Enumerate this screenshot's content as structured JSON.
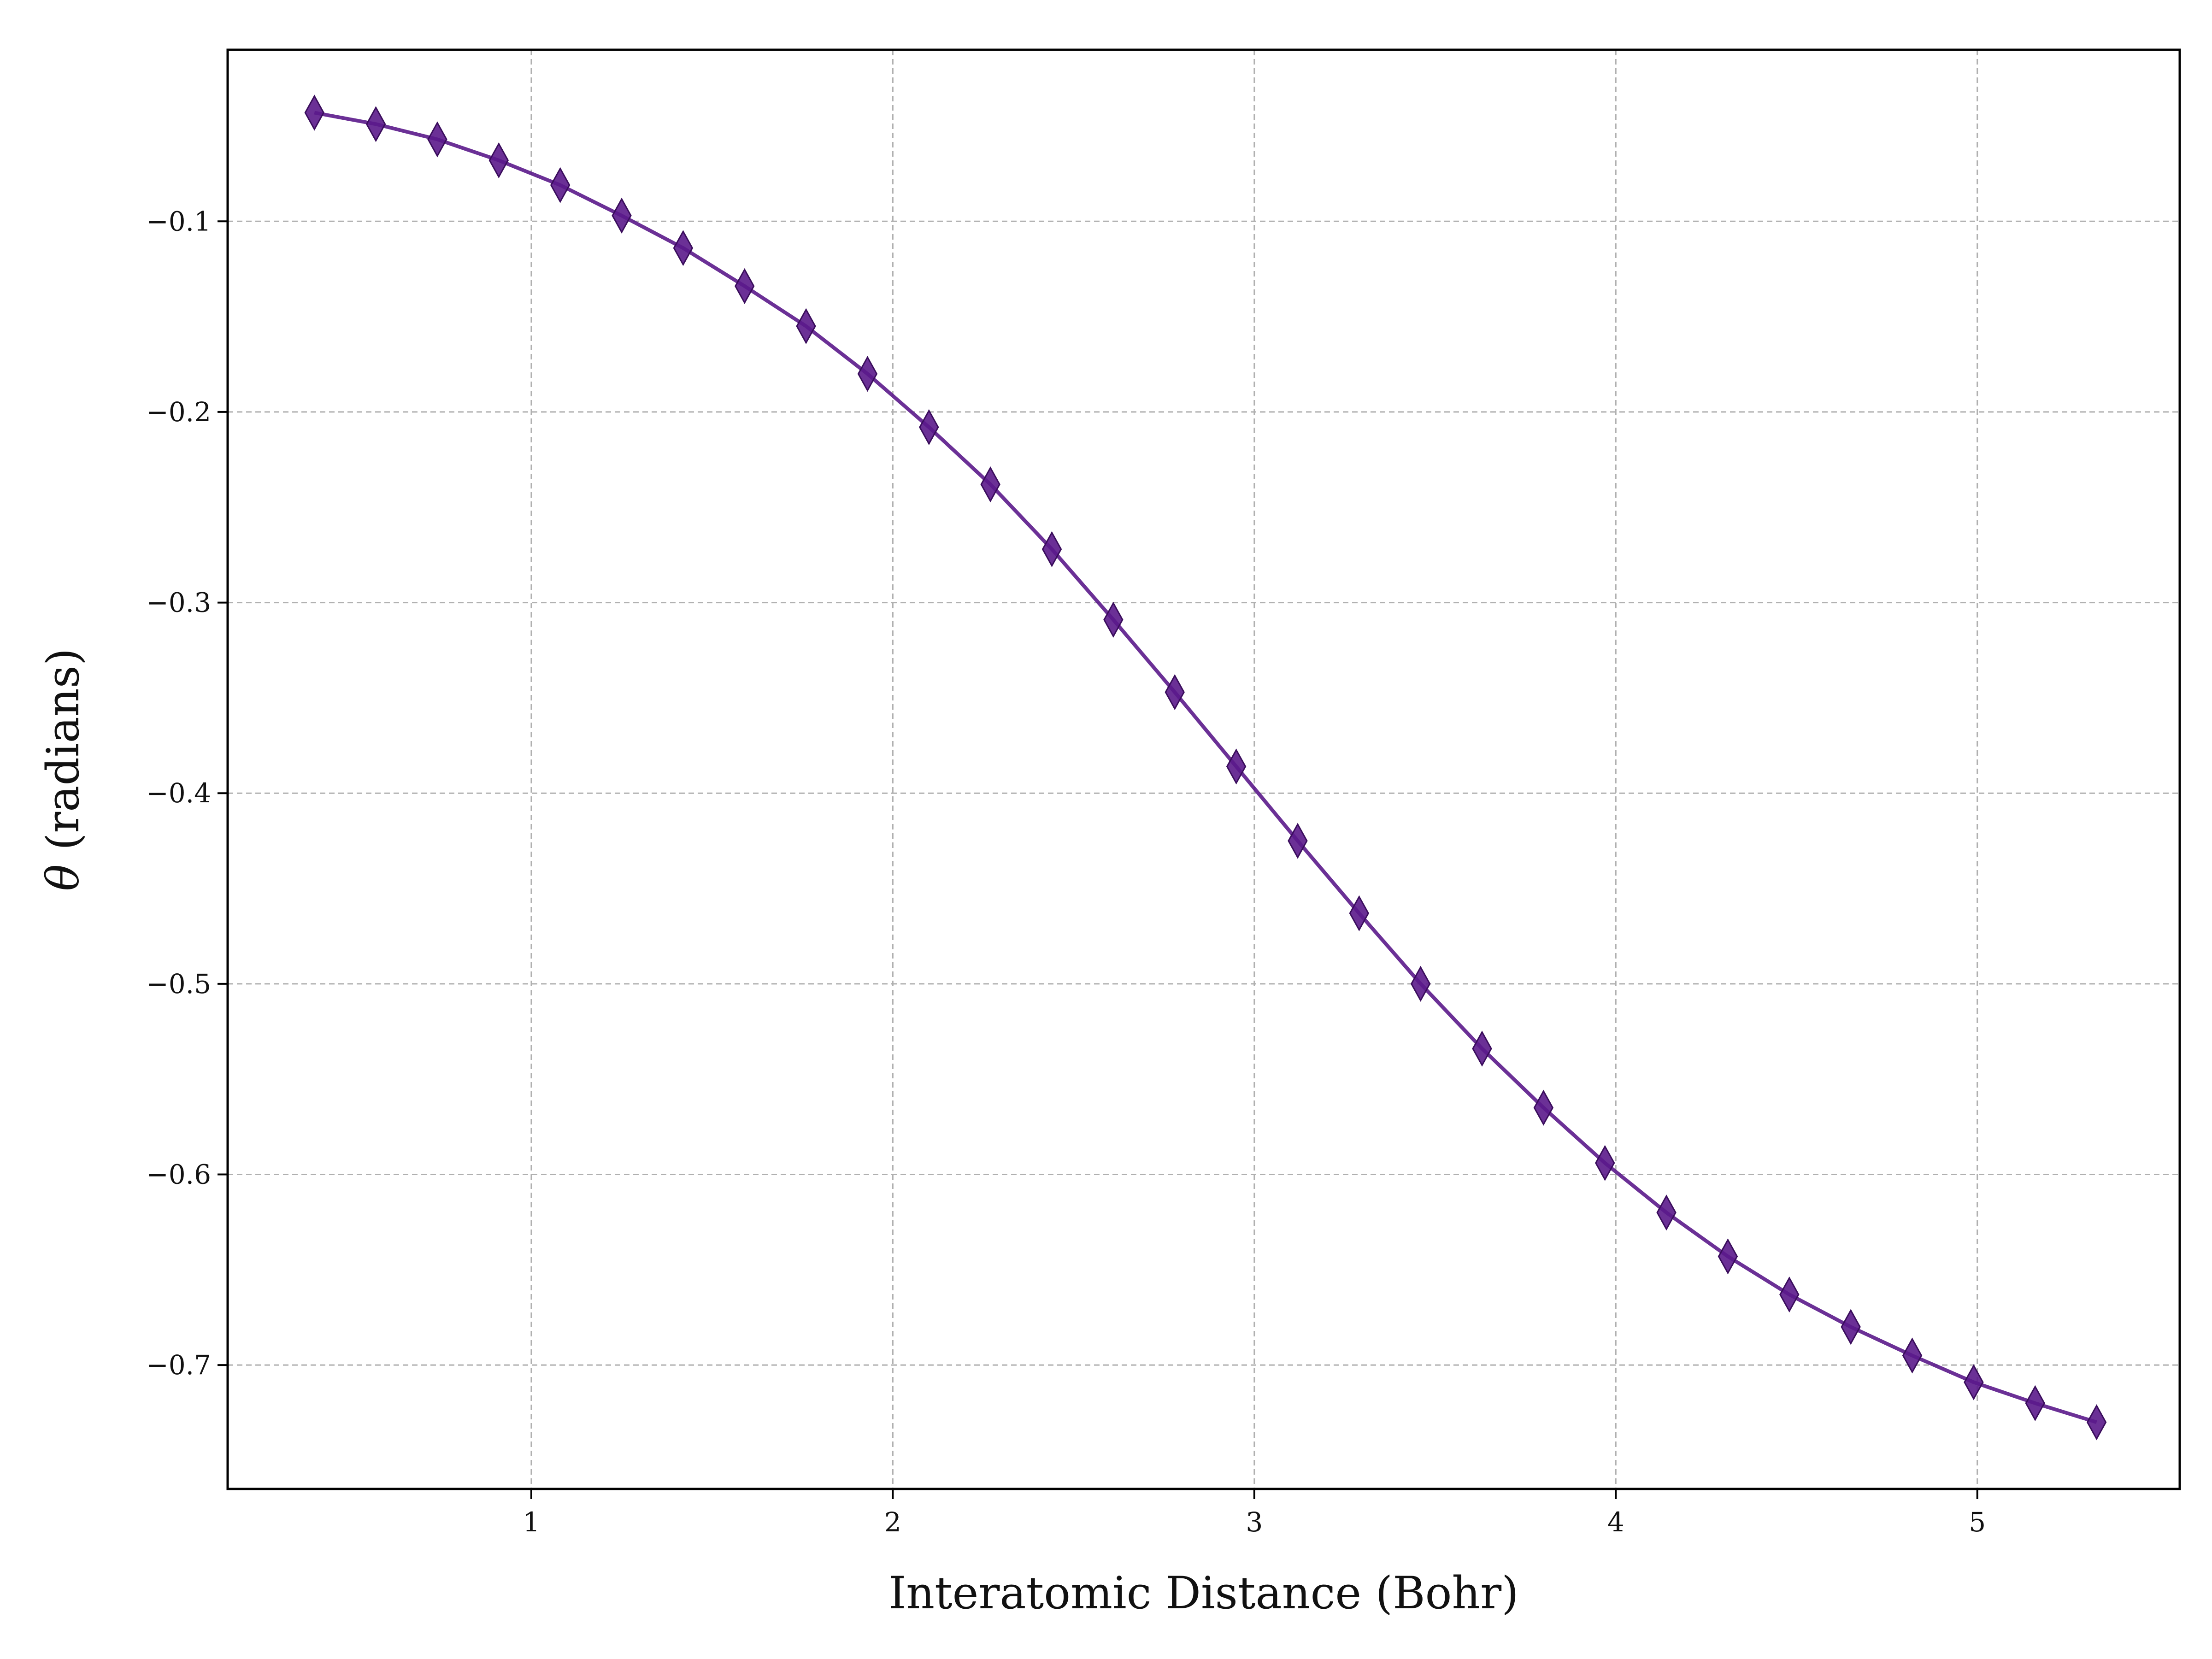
{
  "chart_data": {
    "type": "line",
    "title": "",
    "xlabel": "Interatomic Distance (Bohr)",
    "ylabel_symbol": "θ",
    "ylabel_text": "(radians)",
    "xlim": [
      0.16,
      5.56
    ],
    "ylim": [
      -0.765,
      -0.01
    ],
    "x_ticks": [
      1,
      2,
      3,
      4,
      5
    ],
    "x_tick_labels": [
      "1",
      "2",
      "3",
      "4",
      "5"
    ],
    "y_ticks": [
      -0.1,
      -0.2,
      -0.3,
      -0.4,
      -0.5,
      -0.6,
      -0.7
    ],
    "y_tick_labels": [
      "−0.1",
      "−0.2",
      "−0.3",
      "−0.4",
      "−0.5",
      "−0.6",
      "−0.7"
    ],
    "grid": true,
    "marker": "thin_diamond",
    "series": [
      {
        "color": "#5b1a8b",
        "x": [
          0.4,
          0.57,
          0.74,
          0.91,
          1.08,
          1.25,
          1.42,
          1.59,
          1.76,
          1.93,
          2.1,
          2.27,
          2.44,
          2.61,
          2.78,
          2.95,
          3.12,
          3.29,
          3.46,
          3.63,
          3.8,
          3.97,
          4.14,
          4.31,
          4.48,
          4.65,
          4.82,
          4.99,
          5.16,
          5.33
        ],
        "y": [
          -0.043,
          -0.049,
          -0.057,
          -0.068,
          -0.081,
          -0.097,
          -0.114,
          -0.134,
          -0.155,
          -0.18,
          -0.208,
          -0.238,
          -0.272,
          -0.309,
          -0.347,
          -0.386,
          -0.425,
          -0.463,
          -0.5,
          -0.534,
          -0.565,
          -0.594,
          -0.62,
          -0.643,
          -0.663,
          -0.68,
          -0.695,
          -0.709,
          -0.72,
          -0.73
        ]
      }
    ]
  }
}
